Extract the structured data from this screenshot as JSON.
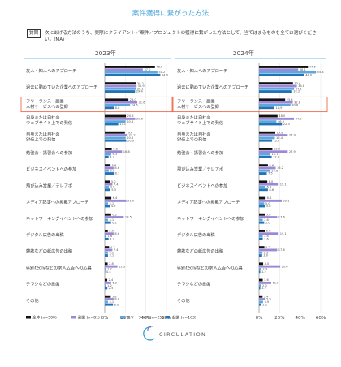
{
  "header": {
    "title": "案件獲得に繋がった方法",
    "question_badge": "質問",
    "question_text": "次にあげる方法のうち、実際にクライアント／案件／プロジェクトの獲得に繋がった方法として、当てはまるものを全てお選びください。(MA)"
  },
  "colors": {
    "total": "#111111",
    "side": "#9b88d6",
    "freelance": "#5da9df",
    "employee": "#2373b8",
    "accent": "#4aa6d8",
    "highlight": "#ef6a4c"
  },
  "legend": [
    {
      "label": "全体 (n=500)"
    },
    {
      "label": "副業 (n=81)"
    },
    {
      "label": "フリーランス (n=256)"
    },
    {
      "label": "起業 (n=163)"
    }
  ],
  "brand": {
    "name": "CIRCULATION"
  },
  "chart_data": [
    {
      "type": "bar",
      "title": "2023年",
      "xlim": [
        0,
        60
      ],
      "xticks": [
        "0%",
        "20%",
        "40%",
        "60%"
      ],
      "categories": [
        "友人・知人へのアプローチ",
        "過去に勤めていた企業へのアプローチ",
        "フリーランス・副業 人材サービスへの登録",
        "自身または自社の ウェブサイト上での発信",
        "自身または自社の SNS上での発信",
        "勉強会・講習会への参加",
        "ビジネスイベントへの参加",
        "飛び込み営業／テレアポ",
        "メディア記事への掲載アプローチ",
        "ネットワーキングイベントへの参加",
        "デジタル広告の出稿",
        "雑誌などの紙広告の出稿",
        "wantedlyなどの求人広告への応募",
        "チラシなどの投函",
        "その他"
      ],
      "highlight_index": 2,
      "series": [
        {
          "name": "全体 (n=500)",
          "values": [
            48.8,
            30.2,
            23.0,
            20.6,
            19.6,
            6.8,
            5.6,
            5.0,
            6.4,
            6.2,
            3.0,
            4.2,
            2.8,
            2.4,
            5.8
          ]
        },
        {
          "name": "副業 (n=81)",
          "values": [
            37.0,
            30.9,
            31.6,
            29.6,
            22.2,
            16.8,
            8.6,
            7.4,
            21.0,
            18.5,
            8.6,
            7.4,
            12.3,
            6.2,
            8.6
          ]
        },
        {
          "name": "フリーランス (n=256)",
          "values": [
            51.2,
            30.1,
            24.6,
            20.3,
            20.3,
            6.3,
            3.9,
            3.9,
            3.1,
            3.1,
            1.6,
            3.1,
            1.2,
            1.2,
            3.1
          ]
        },
        {
          "name": "起業 (n=163)",
          "values": [
            54.0,
            29.4,
            8.8,
            13.1,
            20.9,
            3.7,
            8.7,
            5.3,
            4.9,
            6.1,
            3.7,
            3.1,
            0.4,
            2.5,
            8.0
          ]
        }
      ]
    },
    {
      "type": "bar",
      "title": "2024年",
      "xlim": [
        0,
        60
      ],
      "xticks": [
        "0%",
        "20%",
        "40%",
        "60%"
      ],
      "categories": [
        "友人・知人へのアプローチ",
        "過去に勤めていた企業へのアプローチ",
        "フリーランス・副業 人材サービスへの登録",
        "自身または自社の ウェブサイト上での発信",
        "自身または自社の SNS上での発信",
        "勉強会・講習会への参加",
        "飛び込み営業／テレアポ",
        "ビジネスイベントへの参加",
        "メディア記事への掲載アプローチ",
        "ネットワーキングイベントへの参加",
        "デジタル広告の出稿",
        "雑誌などの紙広告の出稿",
        "wantedlyなどの求人広告への応募",
        "チラシなどの投函",
        "その他"
      ],
      "highlight_index": 2,
      "series": [
        {
          "name": "全体 (n=500)",
          "values": [
            47.6,
            33.0,
            25.4,
            18.0,
            15.8,
            13.0,
            8.6,
            8.0,
            6.4,
            5.8,
            5.8,
            5.2,
            4.0,
            3.6,
            3.4
          ]
        },
        {
          "name": "副業 (n=81)",
          "values": [
            38.1,
            36.8,
            32.8,
            34.0,
            27.9,
            27.9,
            16.2,
            19.1,
            22.1,
            17.6,
            19.1,
            17.6,
            20.6,
            11.8,
            5.9
          ]
        },
        {
          "name": "フリーランス (n=256)",
          "values": [
            55.4,
            34.1,
            30.6,
            16.9,
            15.4,
            11.1,
            10.8,
            6.3,
            5.0,
            3.6,
            3.6,
            3.3,
            2.3,
            2.0,
            3.9
          ]
        },
        {
          "name": "起業 (n=163)",
          "values": [
            44.0,
            32.2,
            14.9,
            22.3,
            12.7,
            12.3,
            7.5,
            8.6,
            5.8,
            5.0,
            3.6,
            3.0,
            1.2,
            1.2,
            2.2
          ]
        }
      ]
    }
  ]
}
